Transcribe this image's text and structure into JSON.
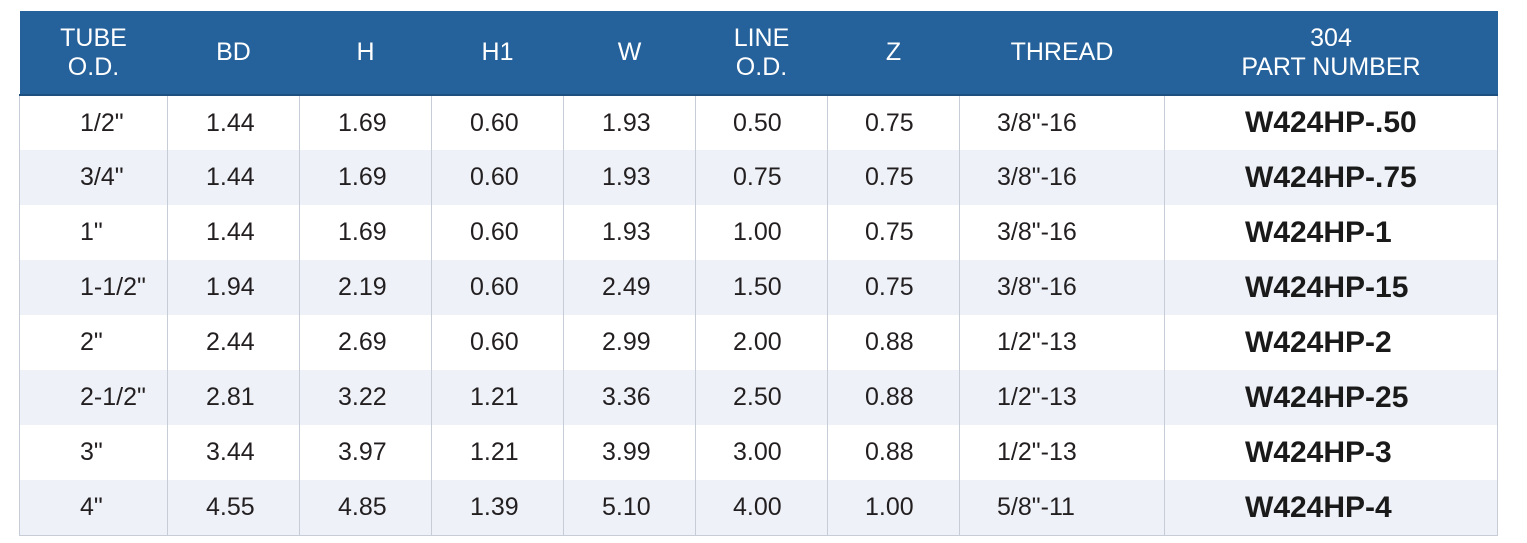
{
  "table": {
    "headers": [
      {
        "line1": "TUBE",
        "line2": "O.D."
      },
      {
        "line1": "BD",
        "line2": ""
      },
      {
        "line1": "H",
        "line2": ""
      },
      {
        "line1": "H1",
        "line2": ""
      },
      {
        "line1": "W",
        "line2": ""
      },
      {
        "line1": "LINE",
        "line2": "O.D."
      },
      {
        "line1": "Z",
        "line2": ""
      },
      {
        "line1": "THREAD",
        "line2": ""
      },
      {
        "line1": "304",
        "line2": "PART NUMBER"
      }
    ],
    "rows": [
      [
        "1/2\"",
        "1.44",
        "1.69",
        "0.60",
        "1.93",
        "0.50",
        "0.75",
        "3/8\"-16",
        "W424HP-.50"
      ],
      [
        "3/4\"",
        "1.44",
        "1.69",
        "0.60",
        "1.93",
        "0.75",
        "0.75",
        "3/8\"-16",
        "W424HP-.75"
      ],
      [
        "1\"",
        "1.44",
        "1.69",
        "0.60",
        "1.93",
        "1.00",
        "0.75",
        "3/8\"-16",
        "W424HP-1"
      ],
      [
        "1-1/2\"",
        "1.94",
        "2.19",
        "0.60",
        "2.49",
        "1.50",
        "0.75",
        "3/8\"-16",
        "W424HP-15"
      ],
      [
        "2\"",
        "2.44",
        "2.69",
        "0.60",
        "2.99",
        "2.00",
        "0.88",
        "1/2\"-13",
        "W424HP-2"
      ],
      [
        "2-1/2\"",
        "2.81",
        "3.22",
        "1.21",
        "3.36",
        "2.50",
        "0.88",
        "1/2\"-13",
        "W424HP-25"
      ],
      [
        "3\"",
        "3.44",
        "3.97",
        "1.21",
        "3.99",
        "3.00",
        "0.88",
        "1/2\"-13",
        "W424HP-3"
      ],
      [
        "4\"",
        "4.55",
        "4.85",
        "1.39",
        "5.10",
        "4.00",
        "1.00",
        "5/8\"-11",
        "W424HP-4"
      ]
    ]
  },
  "colors": {
    "header_bg": "#25619a",
    "header_text": "#ffffff",
    "row_alt_bg": "#eef2f8",
    "row_bg": "#ffffff",
    "grid_line": "#c6cdd6"
  }
}
